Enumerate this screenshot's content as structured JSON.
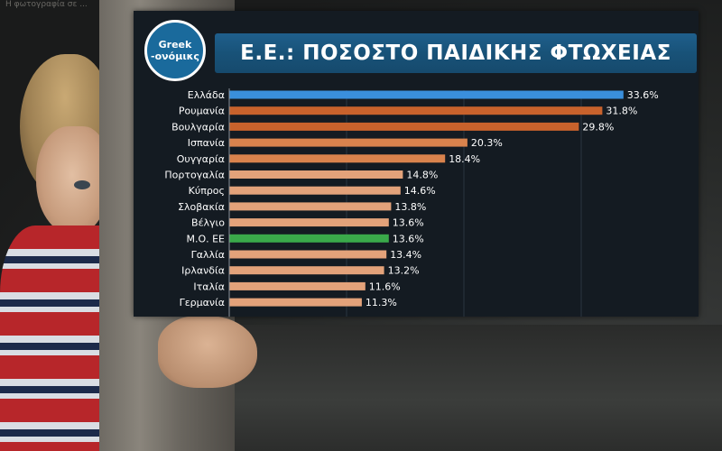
{
  "logo": {
    "line1": "Greek",
    "line2": "-ονόμικς"
  },
  "title": "Ε.Ε.: ΠΟΣΟΣΤΟ ΠΑΙΔΙΚΗΣ ΦΤΩΧΕΙΑΣ",
  "colors": {
    "highlight": "#3a8fdc",
    "average": "#3aa94a",
    "dark_orange": "#c8622c",
    "orange": "#d9834d",
    "light_orange": "#e3a27a",
    "label": "#ffffff",
    "value": "#ffffff",
    "grid": "#2a3440",
    "axis": "#8a929a",
    "card_bg": "#141b22"
  },
  "chart_data": {
    "type": "bar",
    "orientation": "horizontal",
    "title": "Ε.Ε.: ΠΟΣΟΣΤΟ ΠΑΙΔΙΚΗΣ ΦΤΩΧΕΙΑΣ",
    "categories": [
      "Ελλάδα",
      "Ρουμανία",
      "Βουλγαρία",
      "Ισπανία",
      "Ουγγαρία",
      "Πορτογαλία",
      "Κύπρος",
      "Σλοβακία",
      "Βέλγιο",
      "Μ.Ο. ΕΕ",
      "Γαλλία",
      "Ιρλανδία",
      "Ιταλία",
      "Γερμανία"
    ],
    "values": [
      33.6,
      31.8,
      29.8,
      20.3,
      18.4,
      14.8,
      14.6,
      13.8,
      13.6,
      13.6,
      13.4,
      13.2,
      11.6,
      11.3
    ],
    "value_labels": [
      "33.6%",
      "31.8%",
      "29.8%",
      "20.3%",
      "18.4%",
      "14.8%",
      "14.6%",
      "13.8%",
      "13.6%",
      "13.6%",
      "13.4%",
      "13.2%",
      "11.6%",
      "11.3%"
    ],
    "color_keys": [
      "highlight",
      "dark_orange",
      "dark_orange",
      "orange",
      "orange",
      "light_orange",
      "light_orange",
      "light_orange",
      "light_orange",
      "average",
      "light_orange",
      "light_orange",
      "light_orange",
      "light_orange"
    ],
    "xlim": [
      0,
      40
    ],
    "grid": true,
    "xlabel": "",
    "ylabel": ""
  },
  "background": {
    "watermark": "Η φωτογραφία σε ..."
  }
}
